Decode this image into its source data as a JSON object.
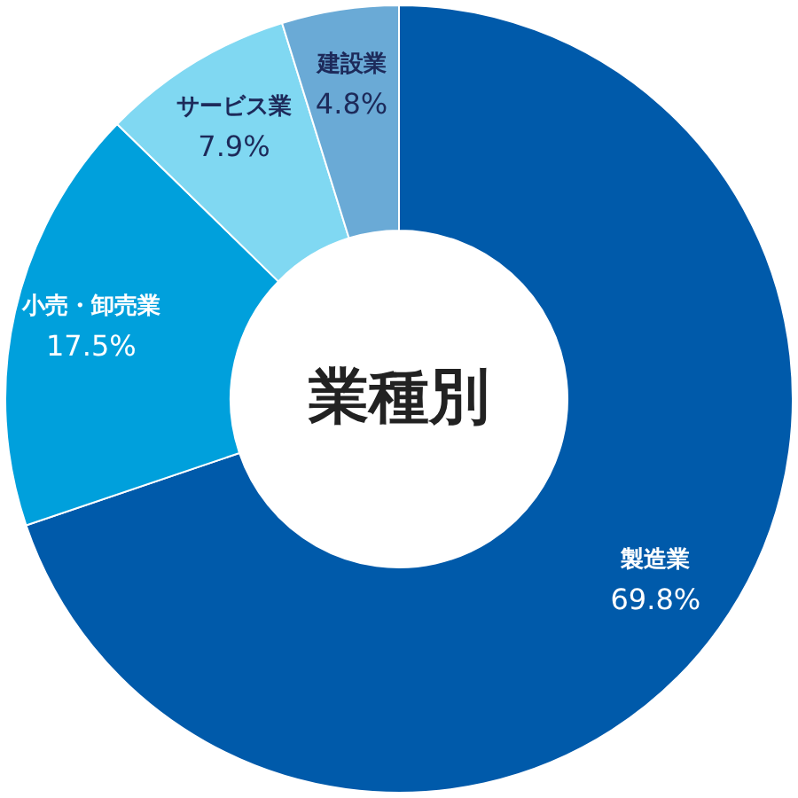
{
  "chart_data": {
    "type": "donut",
    "title": "業種別",
    "categories": [
      "製造業",
      "小売・卸売業",
      "サービス業",
      "建設業"
    ],
    "values": [
      69.8,
      17.5,
      7.9,
      4.8
    ],
    "colors": [
      "#005aaa",
      "#00a0dc",
      "#80d8f2",
      "#6aaad6"
    ],
    "value_labels": [
      "69.8%",
      "17.5%",
      "7.9%",
      "4.8%"
    ]
  }
}
